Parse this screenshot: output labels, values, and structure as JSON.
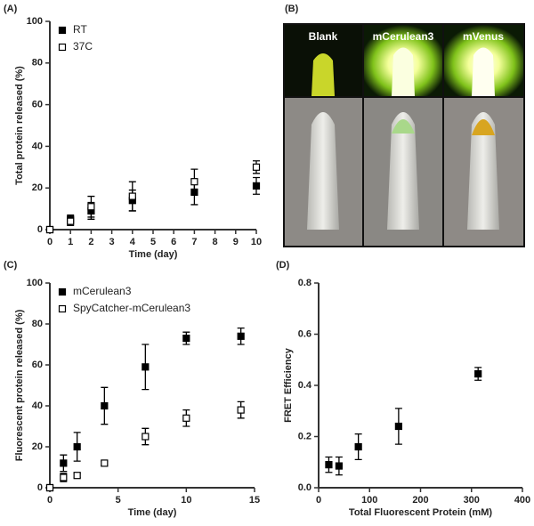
{
  "chart_data": [
    {
      "type": "scatter",
      "panel_label": "(A)",
      "xlabel": "Time (day)",
      "ylabel": "Total protein released (%)",
      "xlim": [
        0,
        10
      ],
      "xticks": [
        0,
        1,
        2,
        3,
        4,
        5,
        6,
        7,
        8,
        9,
        10
      ],
      "ylim": [
        0,
        100
      ],
      "yticks": [
        0,
        20,
        40,
        60,
        80,
        100
      ],
      "legend": "upper left",
      "series": [
        {
          "name": "RT",
          "color": "#000000",
          "marker": "filled-square",
          "x": [
            0,
            1,
            2,
            4,
            7,
            10
          ],
          "values": [
            0,
            5,
            9,
            14,
            18,
            21
          ],
          "errors": [
            0,
            2,
            4,
            5,
            6,
            4
          ]
        },
        {
          "name": "37C",
          "color": "#000000",
          "marker": "open-square",
          "x": [
            0,
            1,
            2,
            4,
            7,
            10
          ],
          "values": [
            0,
            4,
            11,
            16,
            23,
            30
          ],
          "errors": [
            0,
            2,
            5,
            7,
            6,
            3
          ]
        }
      ]
    },
    {
      "type": "scatter",
      "panel_label": "(C)",
      "xlabel": "Time (day)",
      "ylabel": "Fluorescent protein released (%)",
      "xlim": [
        0,
        15
      ],
      "xticks": [
        0,
        5,
        10,
        15
      ],
      "ylim": [
        0,
        100
      ],
      "yticks": [
        0,
        20,
        40,
        60,
        80,
        100
      ],
      "legend": "upper left",
      "series": [
        {
          "name": "mCerulean3",
          "color": "#000000",
          "marker": "filled-square",
          "x": [
            0,
            1,
            2,
            4,
            7,
            10,
            14
          ],
          "values": [
            0,
            12,
            20,
            40,
            59,
            73,
            74
          ],
          "errors": [
            0,
            4,
            7,
            9,
            11,
            3,
            4
          ]
        },
        {
          "name": "SpyCatcher-mCerulean3",
          "color": "#000000",
          "marker": "open-square",
          "x": [
            0,
            1,
            2,
            4,
            7,
            10,
            14
          ],
          "values": [
            0,
            5,
            6,
            12,
            25,
            34,
            38
          ],
          "errors": [
            0,
            2,
            1,
            1,
            4,
            4,
            4
          ]
        }
      ]
    },
    {
      "type": "scatter",
      "panel_label": "(D)",
      "xlabel": "Total Fluorescent Protein (mM)",
      "ylabel": "FRET Efficiency",
      "xlim": [
        0,
        400
      ],
      "xticks": [
        0,
        100,
        200,
        300,
        400
      ],
      "ylim": [
        0,
        0.8
      ],
      "yticks": [
        {
          "value": 0,
          "label": "0.0"
        },
        0.2,
        0.4,
        0.6,
        0.8
      ],
      "series": [
        {
          "color": "#000000",
          "marker": "filled-square",
          "x": [
            20,
            40,
            78,
            157,
            313
          ],
          "values": [
            0.09,
            0.085,
            0.16,
            0.24,
            0.445
          ],
          "errors": [
            0.03,
            0.035,
            0.05,
            0.07,
            0.025
          ]
        }
      ]
    }
  ],
  "photo_panel": {
    "panel_label": "(B)",
    "tubes": [
      "Blank",
      "mCerulean3",
      "mVenus"
    ]
  }
}
